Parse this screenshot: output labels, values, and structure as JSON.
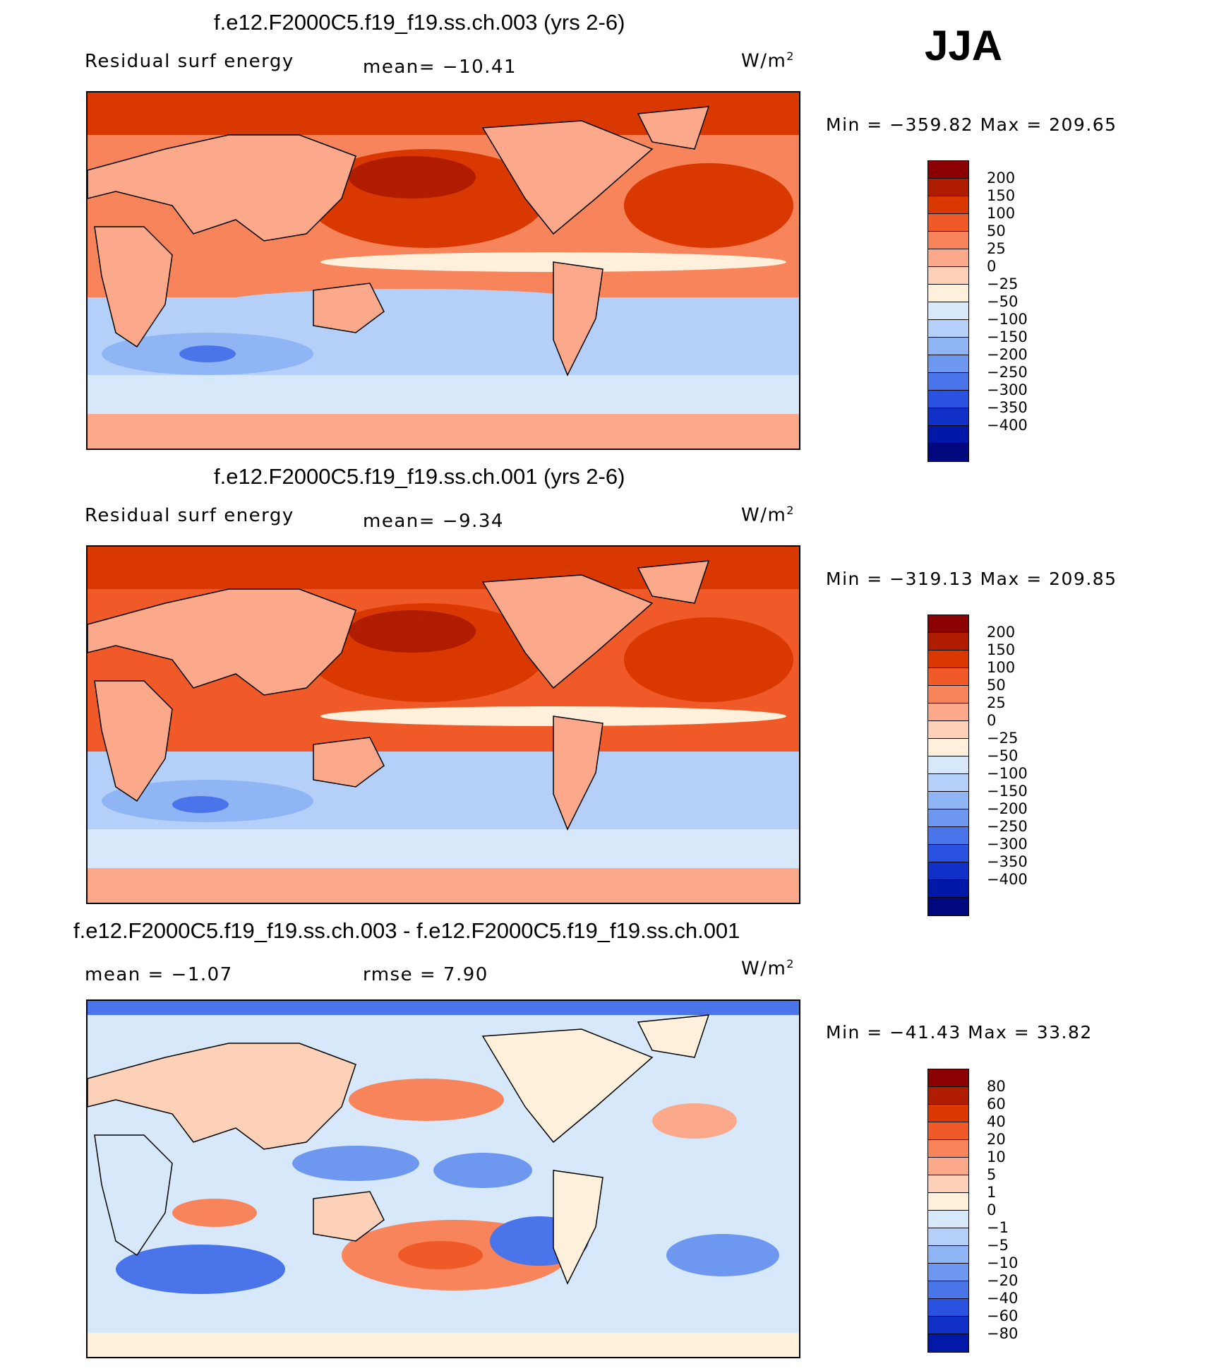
{
  "season": "JJA",
  "panels": [
    {
      "title": "f.e12.F2000C5.f19_f19.ss.ch.003 (yrs 2-6)",
      "variable": "Residual surf energy",
      "stat1": "mean=  −10.41",
      "stat2": "",
      "units": "W/m",
      "units_exp": "2",
      "minmax": "Min = −359.82 Max = 209.65",
      "colorbar": {
        "colors": [
          "#8b0000",
          "#b01c00",
          "#d93800",
          "#f05a28",
          "#f7845a",
          "#fba98a",
          "#fdd0b8",
          "#fff0dc",
          "#d6e8fa",
          "#b4d0f8",
          "#90b5f5",
          "#6e97f0",
          "#4a75ea",
          "#2a52e0",
          "#1030c8",
          "#0018a8",
          "#00087e"
        ],
        "ticks": [
          "200",
          "150",
          "100",
          "50",
          "25",
          "0",
          "−25",
          "−50",
          "−100",
          "−150",
          "−200",
          "−250",
          "−300",
          "−350",
          "−400"
        ]
      }
    },
    {
      "title": "f.e12.F2000C5.f19_f19.ss.ch.001 (yrs 2-6)",
      "variable": "Residual surf energy",
      "stat1": "mean=  −9.34",
      "stat2": "",
      "units": "W/m",
      "units_exp": "2",
      "minmax": "Min = −319.13 Max = 209.85",
      "colorbar": {
        "colors": [
          "#8b0000",
          "#b01c00",
          "#d93800",
          "#f05a28",
          "#f7845a",
          "#fba98a",
          "#fdd0b8",
          "#fff0dc",
          "#d6e8fa",
          "#b4d0f8",
          "#90b5f5",
          "#6e97f0",
          "#4a75ea",
          "#2a52e0",
          "#1030c8",
          "#0018a8",
          "#00087e"
        ],
        "ticks": [
          "200",
          "150",
          "100",
          "50",
          "25",
          "0",
          "−25",
          "−50",
          "−100",
          "−150",
          "−200",
          "−250",
          "−300",
          "−350",
          "−400"
        ]
      }
    },
    {
      "title": "f.e12.F2000C5.f19_f19.ss.ch.003 - f.e12.F2000C5.f19_f19.ss.ch.001",
      "variable": "mean =  −1.07",
      "stat1": "rmse =   7.90",
      "stat2": "",
      "units": "W/m",
      "units_exp": "2",
      "minmax": "Min = −41.43 Max =  33.82",
      "colorbar": {
        "colors": [
          "#8b0000",
          "#b01c00",
          "#d93800",
          "#f05a28",
          "#f7845a",
          "#fba98a",
          "#fdd0b8",
          "#fff0dc",
          "#d6e8fa",
          "#b4d0f8",
          "#90b5f5",
          "#6e97f0",
          "#4a75ea",
          "#2a52e0",
          "#1030c8",
          "#0018a8"
        ],
        "ticks": [
          "80",
          "60",
          "40",
          "20",
          "10",
          "5",
          "1",
          "0",
          "−1",
          "−5",
          "−10",
          "−20",
          "−40",
          "−60",
          "−80"
        ]
      }
    }
  ]
}
